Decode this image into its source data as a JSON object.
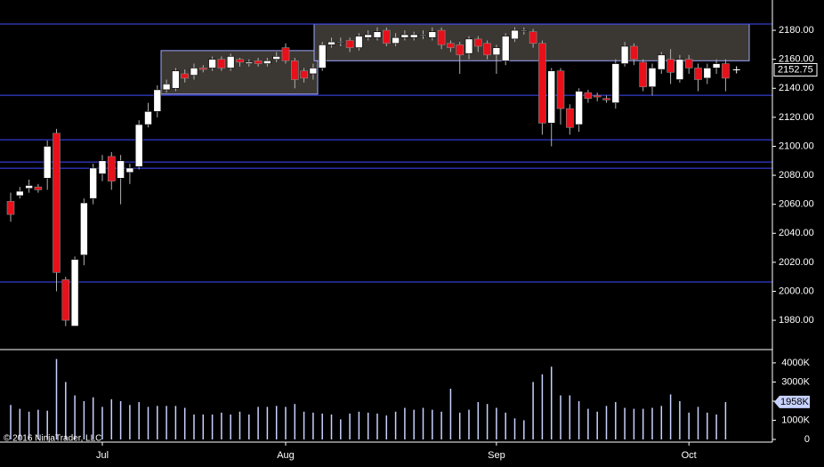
{
  "chart_data": {
    "type": "candlestick",
    "categories": [
      null,
      null,
      null,
      null,
      null,
      null,
      null,
      null,
      null,
      null,
      "Jul",
      null,
      null,
      null,
      null,
      null,
      null,
      null,
      null,
      null,
      null,
      null,
      null,
      null,
      null,
      null,
      null,
      null,
      null,
      null,
      "Aug",
      null,
      null,
      null,
      null,
      null,
      null,
      null,
      null,
      null,
      null,
      null,
      null,
      null,
      null,
      null,
      null,
      null,
      null,
      null,
      null,
      null,
      null,
      "Sep",
      null,
      null,
      null,
      null,
      null,
      null,
      null,
      null,
      null,
      null,
      null,
      null,
      null,
      null,
      null,
      null,
      null,
      null,
      null,
      null,
      "Oct",
      null,
      null,
      null,
      null
    ],
    "open": [
      2062,
      2066,
      2071,
      2072,
      2078,
      2109,
      2008,
      1976,
      2025,
      2064,
      2081,
      2093,
      2078,
      2082,
      2086,
      2115,
      2124,
      2139,
      2140,
      2150,
      2149,
      2154,
      2154,
      2160,
      2154,
      2160,
      2157,
      2159,
      2157,
      2160,
      2168,
      2159,
      2152,
      2150,
      2154,
      2170,
      2172,
      2173,
      2168,
      2175,
      2175,
      2180,
      2171,
      2175,
      2175,
      2177,
      2175,
      2180,
      2171,
      2170,
      2164,
      2174,
      2171,
      2163,
      2159,
      2174,
      2180,
      2179,
      2171,
      2116,
      2152,
      2126,
      2115,
      2137,
      2135,
      2133,
      2130,
      2157,
      2169,
      2158,
      2141,
      2153,
      2160,
      2146,
      2160,
      2154,
      2147,
      2154,
      2157
    ],
    "high": [
      2068,
      2072,
      2077,
      2074,
      2104,
      2112,
      2010,
      2024,
      2064,
      2088,
      2094,
      2096,
      2094,
      2088,
      2118,
      2130,
      2142,
      2146,
      2154,
      2153,
      2157,
      2156,
      2162,
      2162,
      2164,
      2161,
      2160,
      2161,
      2161,
      2165,
      2171,
      2161,
      2154,
      2157,
      2172,
      2175,
      2175,
      2175,
      2178,
      2180,
      2182,
      2182,
      2178,
      2180,
      2179,
      2180,
      2182,
      2182,
      2173,
      2172,
      2176,
      2176,
      2173,
      2170,
      2178,
      2182,
      2182,
      2181,
      2173,
      2154,
      2154,
      2129,
      2140,
      2139,
      2137,
      2135,
      2160,
      2172,
      2171,
      2160,
      2157,
      2165,
      2167,
      2163,
      2163,
      2157,
      2157,
      2160,
      2160
    ],
    "low": [
      2048,
      2064,
      2068,
      2068,
      2070,
      2000,
      1976,
      1976,
      2018,
      2060,
      2076,
      2070,
      2060,
      2074,
      2084,
      2113,
      2120,
      2137,
      2138,
      2144,
      2146,
      2151,
      2152,
      2152,
      2152,
      2155,
      2155,
      2155,
      2155,
      2158,
      2157,
      2140,
      2144,
      2146,
      2152,
      2168,
      2169,
      2165,
      2166,
      2173,
      2173,
      2169,
      2169,
      2173,
      2173,
      2174,
      2173,
      2167,
      2165,
      2150,
      2160,
      2165,
      2160,
      2150,
      2156,
      2172,
      2177,
      2168,
      2108,
      2100,
      2115,
      2108,
      2110,
      2130,
      2131,
      2130,
      2126,
      2155,
      2156,
      2138,
      2135,
      2150,
      2143,
      2144,
      2150,
      2138,
      2143,
      2150,
      2138
    ],
    "close": [
      2053,
      2069,
      2073,
      2070,
      2100,
      2013,
      1980,
      2022,
      2061,
      2085,
      2090,
      2076,
      2090,
      2085,
      2115,
      2124,
      2139,
      2143,
      2152,
      2147,
      2154,
      2153,
      2160,
      2154,
      2162,
      2158,
      2158,
      2157,
      2159,
      2162,
      2159,
      2146,
      2147,
      2154,
      2170,
      2172,
      2172,
      2168,
      2176,
      2177,
      2179,
      2171,
      2175,
      2177,
      2177,
      2177,
      2179,
      2170,
      2168,
      2163,
      2174,
      2169,
      2163,
      2168,
      2176,
      2180,
      2180,
      2171,
      2116,
      2152,
      2126,
      2113,
      2138,
      2133,
      2134,
      2132,
      2157,
      2169,
      2160,
      2141,
      2154,
      2163,
      2151,
      2160,
      2154,
      2146,
      2154,
      2157,
      2147
    ],
    "volume": [
      1800000,
      1600000,
      1450000,
      1550000,
      1500000,
      4200000,
      3000000,
      2300000,
      2000000,
      2200000,
      1700000,
      2100000,
      2000000,
      1800000,
      1950000,
      1700000,
      1750000,
      1750000,
      1750000,
      1650000,
      1300000,
      1300000,
      1300000,
      1400000,
      1300000,
      1450000,
      1300000,
      1700000,
      1700000,
      1750000,
      1700000,
      1850000,
      1450000,
      1400000,
      1350000,
      1300000,
      1050000,
      1350000,
      1450000,
      1400000,
      1350000,
      1250000,
      1450000,
      1650000,
      1550000,
      1650000,
      1550000,
      1450000,
      2650000,
      1400000,
      1550000,
      1950000,
      1850000,
      1650000,
      1400000,
      1100000,
      1000000,
      3000000,
      3400000,
      3800000,
      2300000,
      2300000,
      2000000,
      1600000,
      1450000,
      1750000,
      1950000,
      1650000,
      1600000,
      1600000,
      1650000,
      1750000,
      2350000,
      2000000,
      1400000,
      1700000,
      1400000,
      1300000,
      1950000
    ],
    "up_color": "#ffffff",
    "down_color": "#e8101a",
    "wick_color": "#b0b0b0",
    "volume_color": "#c8d2ff",
    "ylim": [
      1959.8,
      2200.9
    ],
    "yticks": [
      {
        "value": 1980,
        "label": "1980.00"
      },
      {
        "value": 2000,
        "label": "2000.00"
      },
      {
        "value": 2020,
        "label": "2020.00"
      },
      {
        "value": 2040,
        "label": "2040.00"
      },
      {
        "value": 2060,
        "label": "2060.00"
      },
      {
        "value": 2080,
        "label": "2080.00"
      },
      {
        "value": 2100,
        "label": "2100.00"
      },
      {
        "value": 2120,
        "label": "2120.00"
      },
      {
        "value": 2140,
        "label": "2140.00"
      },
      {
        "value": 2160,
        "label": "2160.00"
      },
      {
        "value": 2180,
        "label": "2180.00"
      }
    ],
    "volume_ylim": [
      -140000,
      4600000
    ],
    "volume_yticks": [
      0,
      {
        "value": 1000000,
        "label": "1000K"
      },
      {
        "value": 2000000,
        "label": "2000K"
      },
      {
        "value": 3000000,
        "label": "3000K"
      },
      {
        "value": 4000000,
        "label": "4000K"
      }
    ],
    "levels": [
      2184.3,
      2135.2,
      2104.5,
      2089.2,
      2084.9,
      2006.4
    ],
    "level_color": "#3f4bff",
    "zones": [
      {
        "low": 2136,
        "high": 2166
      },
      {
        "low": 2159,
        "high": 2184.3
      }
    ],
    "zone_fill": "#3b3732",
    "zone_stroke": "#a0a8ff",
    "last_price": 2152.75,
    "last_volume": {
      "value": 1958000,
      "label": "1958K"
    },
    "copyright": "© 2016 NinjaTrader, LLC"
  }
}
